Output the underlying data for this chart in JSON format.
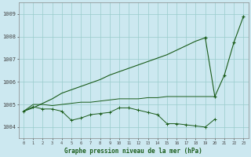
{
  "x": [
    0,
    1,
    2,
    3,
    4,
    5,
    6,
    7,
    8,
    9,
    10,
    11,
    12,
    13,
    14,
    15,
    16,
    17,
    18,
    19,
    20,
    21,
    22,
    23
  ],
  "line_noisy": [
    1004.7,
    1004.9,
    1004.8,
    1004.8,
    1004.7,
    1004.3,
    1004.4,
    1004.55,
    1004.6,
    1004.65,
    1004.85,
    1004.85,
    1004.75,
    1004.65,
    1004.55,
    1004.15,
    1004.15,
    1004.1,
    1004.05,
    1004.0,
    1004.35,
    null,
    null,
    null
  ],
  "line_flat": [
    1004.7,
    1005.0,
    1005.0,
    1004.95,
    1005.0,
    1005.05,
    1005.1,
    1005.1,
    1005.15,
    1005.2,
    1005.25,
    1005.25,
    1005.25,
    1005.3,
    1005.3,
    1005.35,
    1005.35,
    1005.35,
    1005.35,
    1005.35,
    1005.35,
    null,
    null,
    null
  ],
  "line_rising": [
    1004.7,
    1004.85,
    1005.05,
    1005.25,
    1005.5,
    1005.65,
    1005.8,
    1005.95,
    1006.1,
    1006.3,
    1006.45,
    1006.6,
    1006.75,
    1006.9,
    1007.05,
    1007.2,
    1007.4,
    1007.6,
    1007.8,
    1007.95,
    1005.35,
    1006.3,
    1007.75,
    1008.9
  ],
  "bg_color": "#cce8f0",
  "grid_color": "#99cccc",
  "line_color": "#1a5c1a",
  "title": "Graphe pression niveau de la mer (hPa)",
  "ylim_min": 1003.5,
  "ylim_max": 1009.5,
  "xlim_min": -0.5,
  "xlim_max": 23.5,
  "yticks": [
    1004,
    1005,
    1006,
    1007,
    1008,
    1009
  ]
}
